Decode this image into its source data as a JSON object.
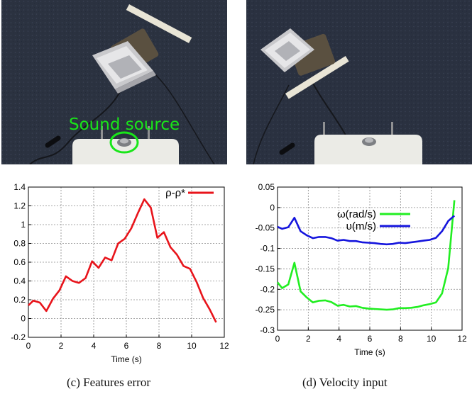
{
  "photos": [
    {
      "id": "a",
      "overlay_label": "Sound source",
      "overlay_color": "#19e619"
    },
    {
      "id": "b",
      "overlay_label": ""
    }
  ],
  "captions": {
    "c": "(c) Features error",
    "d": "(d) Velocity input"
  },
  "chart_data": [
    {
      "type": "line",
      "xlabel": "Time (s)",
      "ylabel": "",
      "xlim": [
        0,
        12
      ],
      "ylim": [
        -0.2,
        1.4
      ],
      "xticks": [
        0,
        2,
        4,
        6,
        8,
        10,
        12
      ],
      "yticks": [
        -0.2,
        0,
        0.2,
        0.4,
        0.6,
        0.8,
        1,
        1.2,
        1.4
      ],
      "grid": true,
      "legend_position": "top-right",
      "series": [
        {
          "name": "ρ-ρ*",
          "color": "#e8141b",
          "x": [
            0,
            0.3,
            0.7,
            1.1,
            1.5,
            1.9,
            2.3,
            2.7,
            3.1,
            3.5,
            3.9,
            4.3,
            4.7,
            5.1,
            5.5,
            5.9,
            6.3,
            6.7,
            7.1,
            7.5,
            7.9,
            8.3,
            8.7,
            9.1,
            9.5,
            9.9,
            10.3,
            10.7,
            11.1,
            11.5
          ],
          "y": [
            0.14,
            0.19,
            0.17,
            0.08,
            0.21,
            0.3,
            0.45,
            0.4,
            0.38,
            0.43,
            0.61,
            0.54,
            0.65,
            0.62,
            0.8,
            0.85,
            0.96,
            1.12,
            1.27,
            1.18,
            0.86,
            0.92,
            0.76,
            0.68,
            0.56,
            0.53,
            0.39,
            0.22,
            0.1,
            -0.04
          ]
        }
      ]
    },
    {
      "type": "line",
      "xlabel": "Time (s)",
      "ylabel": "",
      "xlim": [
        0,
        12
      ],
      "ylim": [
        -0.3,
        0.05
      ],
      "xticks": [
        0,
        2,
        4,
        6,
        8,
        10,
        12
      ],
      "yticks": [
        -0.3,
        -0.25,
        -0.2,
        -0.15,
        -0.1,
        -0.05,
        0,
        0.05
      ],
      "grid": true,
      "legend_position": "top-right",
      "series": [
        {
          "name": "ω(rad/s)",
          "color": "#22ee22",
          "x": [
            0,
            0.3,
            0.7,
            1.1,
            1.5,
            1.9,
            2.3,
            2.7,
            3.1,
            3.5,
            3.9,
            4.3,
            4.7,
            5.1,
            5.5,
            5.9,
            6.3,
            6.7,
            7.1,
            7.5,
            7.9,
            8.3,
            8.7,
            9.1,
            9.5,
            9.9,
            10.3,
            10.7,
            11.1,
            11.5
          ],
          "y": [
            -0.183,
            -0.197,
            -0.188,
            -0.135,
            -0.205,
            -0.22,
            -0.232,
            -0.228,
            -0.227,
            -0.231,
            -0.24,
            -0.238,
            -0.242,
            -0.241,
            -0.245,
            -0.247,
            -0.248,
            -0.249,
            -0.25,
            -0.249,
            -0.246,
            -0.246,
            -0.245,
            -0.243,
            -0.239,
            -0.236,
            -0.232,
            -0.21,
            -0.148,
            0.018
          ]
        },
        {
          "name": "υ(m/s)",
          "color": "#1515dd",
          "x": [
            0,
            0.3,
            0.7,
            1.1,
            1.5,
            1.9,
            2.3,
            2.7,
            3.1,
            3.5,
            3.9,
            4.3,
            4.7,
            5.1,
            5.5,
            5.9,
            6.3,
            6.7,
            7.1,
            7.5,
            7.9,
            8.3,
            8.7,
            9.1,
            9.5,
            9.9,
            10.3,
            10.7,
            11.1,
            11.5
          ],
          "y": [
            -0.047,
            -0.052,
            -0.048,
            -0.025,
            -0.058,
            -0.068,
            -0.075,
            -0.072,
            -0.072,
            -0.075,
            -0.081,
            -0.079,
            -0.082,
            -0.082,
            -0.085,
            -0.086,
            -0.087,
            -0.089,
            -0.09,
            -0.089,
            -0.086,
            -0.087,
            -0.085,
            -0.083,
            -0.081,
            -0.079,
            -0.074,
            -0.058,
            -0.033,
            -0.02
          ]
        }
      ]
    }
  ]
}
